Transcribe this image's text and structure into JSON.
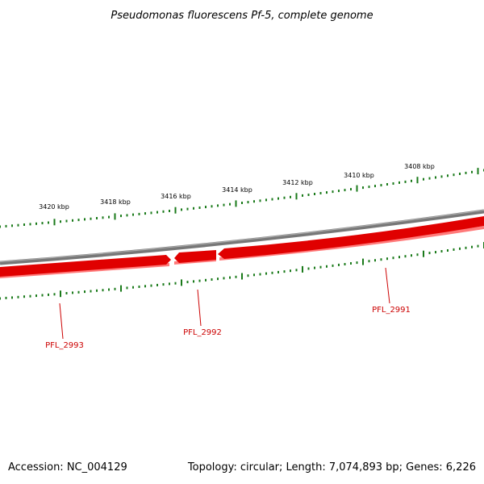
{
  "title": "Pseudomonas fluorescens Pf-5, complete genome",
  "kbp_labels": [
    "3420 kbp",
    "3418 kbp",
    "3416 kbp",
    "3414 kbp",
    "3412 kbp",
    "3410 kbp",
    "3408 kbp"
  ],
  "genes": [
    {
      "name": "PFL_2993",
      "strand": "forward"
    },
    {
      "name": "PFL_2992",
      "strand": "reverse"
    },
    {
      "name": "PFL_2991",
      "strand": "reverse"
    }
  ],
  "footer": {
    "accession": "Accession: NC_004129",
    "topology": "Topology: circular; Length: 7,074,893 bp; Genes: 6,226"
  },
  "colors": {
    "backbone": "#888888",
    "gene": "#e00000",
    "gene_shadow": "#ff8080",
    "tick": "#1a7a1a",
    "label": "#cc0000"
  }
}
